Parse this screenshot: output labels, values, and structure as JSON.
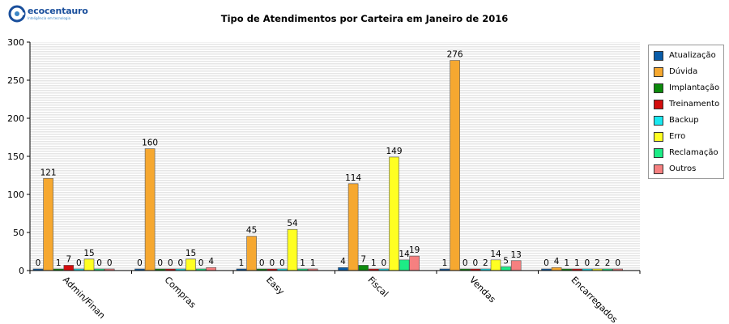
{
  "logo": {
    "name": "ecocentauro",
    "tagline": "Inteligência em tecnologia"
  },
  "chart_data": {
    "type": "bar",
    "title": "Tipo de Atendimentos por Carteira em Janeiro de 2016",
    "xlabel": "",
    "ylabel": "",
    "ylim": [
      0,
      300
    ],
    "yticks": [
      0,
      50,
      100,
      150,
      200,
      250,
      300
    ],
    "grid": true,
    "legend_position": "right",
    "categories": [
      "Admin/Finan",
      "Compras",
      "Easy",
      "Fiscal",
      "Vendas",
      "Encarregados"
    ],
    "series": [
      {
        "name": "Atualização",
        "color": "#0a5ca8",
        "values": [
          0,
          0,
          1,
          4,
          1,
          0
        ]
      },
      {
        "name": "Dúvida",
        "color": "#f6a830",
        "values": [
          121,
          160,
          45,
          114,
          276,
          4
        ]
      },
      {
        "name": "Implantação",
        "color": "#0c8a0c",
        "values": [
          1,
          0,
          0,
          7,
          0,
          1
        ]
      },
      {
        "name": "Treinamento",
        "color": "#d40d0d",
        "values": [
          7,
          0,
          0,
          1,
          0,
          1
        ]
      },
      {
        "name": "Backup",
        "color": "#19e8f0",
        "values": [
          0,
          0,
          0,
          0,
          2,
          0
        ]
      },
      {
        "name": "Erro",
        "color": "#ffff22",
        "values": [
          15,
          15,
          54,
          149,
          14,
          2
        ]
      },
      {
        "name": "Reclamação",
        "color": "#1dec86",
        "values": [
          0,
          0,
          1,
          14,
          5,
          2
        ]
      },
      {
        "name": "Outros",
        "color": "#f68080",
        "values": [
          0,
          4,
          1,
          19,
          13,
          0
        ]
      }
    ]
  }
}
